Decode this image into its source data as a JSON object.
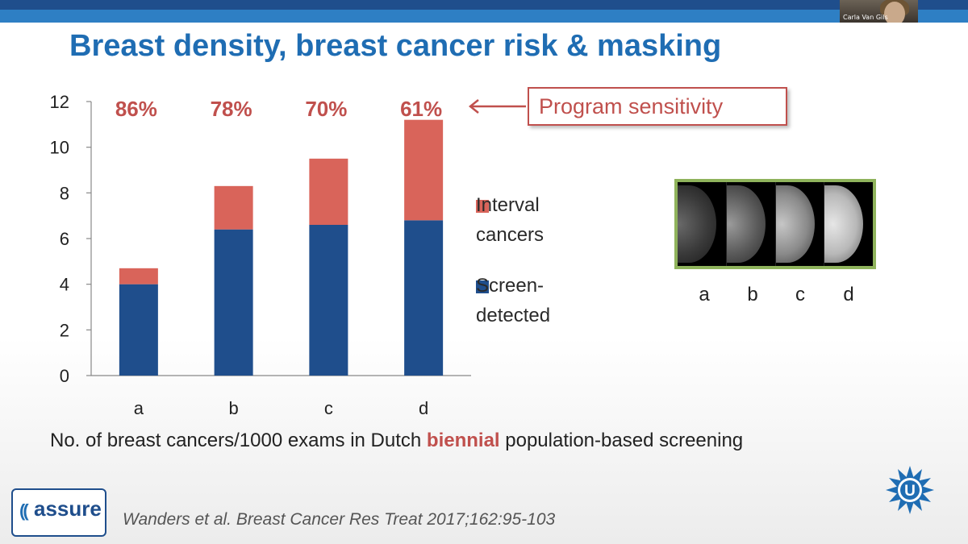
{
  "slide": {
    "title": "Breast density, breast cancer risk & masking",
    "caption_pre": "No. of breast cancers/1000 exams in Dutch ",
    "caption_highlight": "biennial",
    "caption_post": " population-based screening",
    "citation": "Wanders et al. Breast Cancer Res Treat 2017;162:95-103",
    "callout": "Program sensitivity",
    "webcam_name": "Carla Van Gils"
  },
  "logos": {
    "assure_word": "assure",
    "assure_icon": "sound-waves-icon",
    "university_icon": "university-u-logo-icon"
  },
  "mammograms": {
    "labels": [
      "a",
      "b",
      "c",
      "d"
    ]
  },
  "legend": {
    "interval_line1": "Interval",
    "interval_line2": "cancers",
    "screen_line1": "Screen-",
    "screen_line2": "detected"
  },
  "colors": {
    "screen_detected": "#1f4e8c",
    "interval": "#d9645a",
    "sensitivity_text": "#c0504d",
    "title": "#1f6db3"
  },
  "chart_data": {
    "type": "bar",
    "stacked": true,
    "categories": [
      "a",
      "b",
      "c",
      "d"
    ],
    "series": [
      {
        "name": "Screen-detected",
        "values": [
          4.0,
          6.4,
          6.6,
          6.8
        ]
      },
      {
        "name": "Interval cancers",
        "values": [
          0.7,
          1.9,
          2.9,
          4.4
        ]
      }
    ],
    "bar_top_labels": [
      "86%",
      "78%",
      "70%",
      "61%"
    ],
    "ylim": [
      0,
      12
    ],
    "yticks": [
      0,
      2,
      4,
      6,
      8,
      10,
      12
    ],
    "grid": false,
    "legend_position": "right"
  }
}
